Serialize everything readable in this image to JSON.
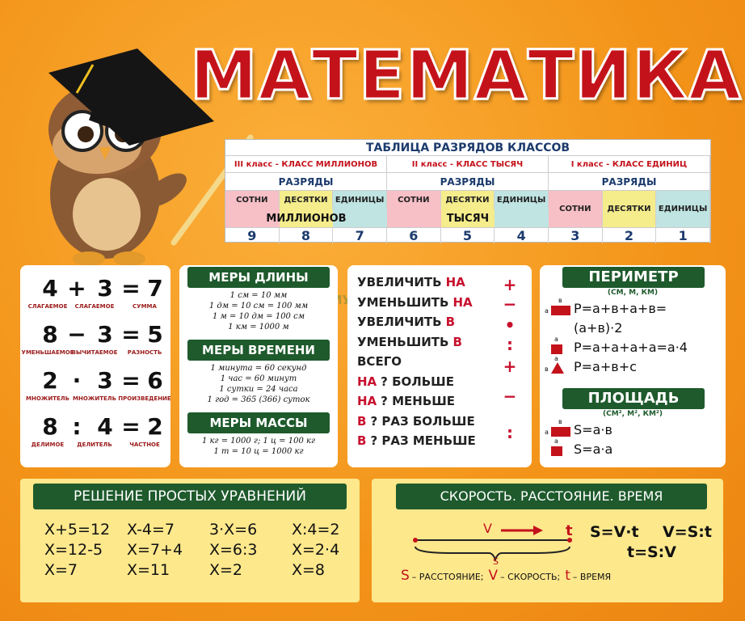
{
  "title": "МАТЕМАТИКА",
  "watermark": "ФОРМУЛА ЗНАНИЙ",
  "place_table": {
    "title": "ТАБЛИЦА РАЗРЯДОВ КЛАССОВ",
    "classes": [
      {
        "name": "III класс - КЛАСС МИЛЛИОНОВ",
        "ranks_label": "РАЗРЯДЫ",
        "ranks": [
          "СОТНИ",
          "ДЕСЯТКИ",
          "ЕДИНИЦЫ"
        ],
        "unit": "МИЛЛИОНОВ",
        "digits": [
          9,
          8,
          7
        ]
      },
      {
        "name": "II класс - КЛАСС ТЫСЯЧ",
        "ranks_label": "РАЗРЯДЫ",
        "ranks": [
          "СОТНИ",
          "ДЕСЯТКИ",
          "ЕДИНИЦЫ"
        ],
        "unit": "ТЫСЯЧ",
        "digits": [
          6,
          5,
          4
        ]
      },
      {
        "name": "I класс - КЛАСС ЕДИНИЦ",
        "ranks_label": "РАЗРЯДЫ",
        "ranks": [
          "СОТНИ",
          "ДЕСЯТКИ",
          "ЕДИНИЦЫ"
        ],
        "digits": [
          3,
          2,
          1
        ]
      }
    ],
    "rank_colors": [
      "#f7bfc6",
      "#f5ec8c",
      "#bfe4e2"
    ]
  },
  "arithmetic": [
    {
      "items": [
        "4",
        "+",
        "3",
        "=",
        "7"
      ],
      "labels": [
        "СЛАГАЕМОЕ",
        "СЛАГАЕМОЕ",
        "СУММА"
      ]
    },
    {
      "items": [
        "8",
        "−",
        "3",
        "=",
        "5"
      ],
      "labels": [
        "УМЕНЬШАЕМОЕ",
        "ВЫЧИТАЕМОЕ",
        "РАЗНОСТЬ"
      ]
    },
    {
      "items": [
        "2",
        "·",
        "3",
        "=",
        "6"
      ],
      "labels": [
        "МНОЖИТЕЛЬ",
        "МНОЖИТЕЛЬ",
        "ПРОИЗВЕДЕНИЕ"
      ]
    },
    {
      "items": [
        "8",
        ":",
        "4",
        "=",
        "2"
      ],
      "labels": [
        "ДЕЛИМОЕ",
        "ДЕЛИТЕЛЬ",
        "ЧАСТНОЕ"
      ]
    }
  ],
  "measures": [
    {
      "title": "МЕРЫ ДЛИНЫ",
      "lines": [
        "1 см = 10 мм",
        "1 дм = 10 см = 100 мм",
        "1 м = 10 дм = 100 см",
        "1 км = 1000 м"
      ]
    },
    {
      "title": "МЕРЫ ВРЕМЕНИ",
      "lines": [
        "1 минута = 60 секунд",
        "1 час = 60 минут",
        "1 сутки = 24 часа",
        "1 год = 365 (366) суток"
      ]
    },
    {
      "title": "МЕРЫ МАССЫ",
      "lines": [
        "1 кг = 1000 г; 1 ц = 100 кг",
        "1 т = 10 ц = 1000 кг"
      ]
    }
  ],
  "compare": {
    "rows": [
      [
        {
          "text": "УВЕЛИЧИТЬ",
          "color": "#222222"
        },
        {
          "text": "НА",
          "color": "#c8102e"
        }
      ],
      [
        {
          "text": "УМЕНЬШИТЬ",
          "color": "#222222"
        },
        {
          "text": "НА",
          "color": "#c8102e"
        }
      ],
      [
        {
          "text": "УВЕЛИЧИТЬ",
          "color": "#222222"
        },
        {
          "text": "В",
          "color": "#c8102e"
        }
      ],
      [
        {
          "text": "УМЕНЬШИТЬ",
          "color": "#222222"
        },
        {
          "text": "В",
          "color": "#c8102e"
        }
      ],
      [
        {
          "text": "ВСЕГО",
          "color": "#222222"
        }
      ],
      [
        {
          "text": "НА",
          "color": "#c8102e"
        },
        {
          "text": "? БОЛЬШЕ",
          "color": "#222222"
        }
      ],
      [
        {
          "text": "НА",
          "color": "#c8102e"
        },
        {
          "text": "? МЕНЬШЕ",
          "color": "#222222"
        }
      ],
      [
        {
          "text": "В",
          "color": "#c8102e"
        },
        {
          "text": "? РАЗ БОЛЬШЕ",
          "color": "#222222"
        }
      ],
      [
        {
          "text": "В",
          "color": "#c8102e"
        },
        {
          "text": "? РАЗ МЕНЬШЕ",
          "color": "#222222"
        }
      ]
    ],
    "signs": [
      "+",
      "−",
      "•",
      ":",
      "+",
      "−",
      ":"
    ]
  },
  "perimeter": {
    "title": "ПЕРИМЕТР",
    "units": "(СМ, М, КМ)",
    "formulas": [
      {
        "shape": "rect",
        "labels": [
          "в",
          "а"
        ],
        "text": "P=а+в+а+в="
      },
      {
        "text": "(а+в)·2"
      },
      {
        "shape": "square",
        "labels": [
          "а"
        ],
        "text": "P=а+а+а+а=а·4"
      },
      {
        "shape": "triangle",
        "labels": [
          "а",
          "в"
        ],
        "text": "P=а+в+с"
      }
    ]
  },
  "area": {
    "title": "ПЛОЩАДЬ",
    "units": "(СМ², М², КМ²)",
    "formulas": [
      {
        "shape": "rect",
        "labels": [
          "в",
          "а"
        ],
        "text": "S=а·в"
      },
      {
        "shape": "square",
        "labels": [
          "а"
        ],
        "text": "S=а·а"
      }
    ]
  },
  "equations": {
    "title": "РЕШЕНИЕ ПРОСТЫХ УРАВНЕНИЙ",
    "columns": [
      [
        "X+5=12",
        "X=12-5",
        "X=7"
      ],
      [
        "X-4=7",
        "X=7+4",
        "X=11"
      ],
      [
        "3·X=6",
        "X=6:3",
        "X=2"
      ],
      [
        "X:4=2",
        "X=2·4",
        "X=8"
      ]
    ]
  },
  "speed": {
    "title": "СКОРОСТЬ. РАССТОЯНИЕ. ВРЕМЯ",
    "diagram": {
      "v": "V",
      "t": "t",
      "s": "S"
    },
    "formulas": [
      "S=V·t",
      "V=S:t",
      "t=S:V"
    ],
    "legend": [
      {
        "symbol": "S",
        "text": "– РАССТОЯНИЕ;"
      },
      {
        "symbol": "V",
        "text": "– СКОРОСТЬ;"
      },
      {
        "symbol": "t",
        "text": "– ВРЕМЯ"
      }
    ]
  }
}
